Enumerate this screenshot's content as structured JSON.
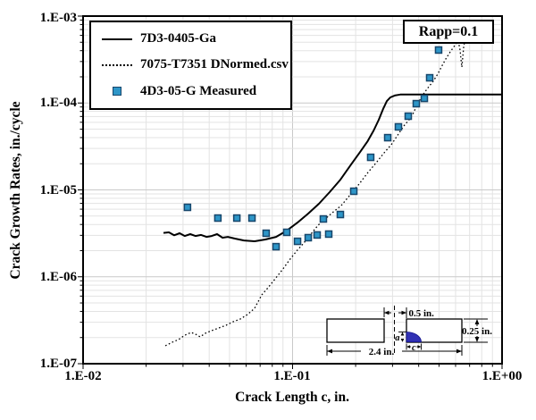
{
  "chart_data": {
    "type": "line",
    "title": "",
    "xlabel": "Crack Length c, in.",
    "ylabel": "Crack Growth Rates, in./cycle",
    "x_scale": "log",
    "y_scale": "log",
    "xlim": [
      0.01,
      1.0
    ],
    "ylim": [
      1e-07,
      0.001
    ],
    "x_tick_labels": [
      "1.E-02",
      "1.E-01",
      "1.E+00"
    ],
    "x_tick_values": [
      0.01,
      0.1,
      1.0
    ],
    "y_tick_labels": [
      "1.E-03",
      "1.E-04",
      "1.E-05",
      "1.E-06",
      "1.E-07"
    ],
    "y_tick_values": [
      0.001,
      0.0001,
      1e-05,
      1e-06,
      1e-07
    ],
    "grid": {
      "show": true,
      "minor": true,
      "minor_color": "#e3e3e3",
      "major_color": "#c9c9c9"
    },
    "annotation_box": "Rapp=0.1",
    "legend_position": "top-left",
    "series": [
      {
        "name": "7D3-0405-Ga",
        "line_style": "solid",
        "marker": "none",
        "color": "#000000",
        "line_width": 2,
        "points": [
          [
            0.0242,
            3.2e-06
          ],
          [
            0.0257,
            3.25e-06
          ],
          [
            0.0272,
            3e-06
          ],
          [
            0.0289,
            3.17e-06
          ],
          [
            0.0306,
            2.95e-06
          ],
          [
            0.0325,
            3.1e-06
          ],
          [
            0.0344,
            2.95e-06
          ],
          [
            0.0366,
            3.03e-06
          ],
          [
            0.0388,
            2.88e-06
          ],
          [
            0.0411,
            2.95e-06
          ],
          [
            0.0436,
            3.1e-06
          ],
          [
            0.0463,
            2.82e-06
          ],
          [
            0.0491,
            2.88e-06
          ],
          [
            0.0531,
            2.75e-06
          ],
          [
            0.0586,
            2.62e-06
          ],
          [
            0.0659,
            2.56e-06
          ],
          [
            0.0741,
            2.69e-06
          ],
          [
            0.0834,
            2.88e-06
          ],
          [
            0.0938,
            3.4e-06
          ],
          [
            0.1056,
            4.2e-06
          ],
          [
            0.1188,
            5.34e-06
          ],
          [
            0.1336,
            6.93e-06
          ],
          [
            0.1503,
            9.43e-06
          ],
          [
            0.1691,
            1.31e-05
          ],
          [
            0.1903,
            1.96e-05
          ],
          [
            0.2103,
            2.74e-05
          ],
          [
            0.2283,
            3.64e-05
          ],
          [
            0.2438,
            4.83e-05
          ],
          [
            0.258,
            6.41e-05
          ],
          [
            0.2703,
            8.51e-05
          ],
          [
            0.2818,
            0.000105
          ],
          [
            0.2929,
            0.000116
          ],
          [
            0.3072,
            0.000122
          ],
          [
            0.3265,
            0.000125
          ],
          [
            1.0,
            0.000125
          ]
        ]
      },
      {
        "name": "7075-T7351 DNormed.csv",
        "line_style": "dotted",
        "marker": "none",
        "color": "#000000",
        "line_width": 1.3,
        "points": [
          [
            0.0247,
            1.61e-07
          ],
          [
            0.0267,
            1.77e-07
          ],
          [
            0.0286,
            1.9e-07
          ],
          [
            0.0306,
            2.13e-07
          ],
          [
            0.0328,
            2.29e-07
          ],
          [
            0.0345,
            2.18e-07
          ],
          [
            0.0362,
            2.04e-07
          ],
          [
            0.0384,
            2.24e-07
          ],
          [
            0.0411,
            2.4e-07
          ],
          [
            0.0445,
            2.58e-07
          ],
          [
            0.0481,
            2.77e-07
          ],
          [
            0.0521,
            3.04e-07
          ],
          [
            0.0563,
            3.27e-07
          ],
          [
            0.0609,
            3.68e-07
          ],
          [
            0.0659,
            4.34e-07
          ],
          [
            0.0713,
            6.19e-07
          ],
          [
            0.0763,
            7.48e-07
          ],
          [
            0.0826,
            9.48e-07
          ],
          [
            0.0893,
            1.2e-06
          ],
          [
            0.0966,
            1.56e-06
          ],
          [
            0.1045,
            1.98e-06
          ],
          [
            0.1131,
            2.44e-06
          ],
          [
            0.1223,
            3.1e-06
          ],
          [
            0.1323,
            3.92e-06
          ],
          [
            0.1431,
            4.63e-06
          ],
          [
            0.1549,
            5.47e-06
          ],
          [
            0.1707,
            6.61e-06
          ],
          [
            0.1884,
            8.78e-06
          ],
          [
            0.2078,
            1.17e-05
          ],
          [
            0.2293,
            1.59e-05
          ],
          [
            0.2529,
            2.11e-05
          ],
          [
            0.2735,
            2.67e-05
          ],
          [
            0.296,
            3.31e-05
          ],
          [
            0.3201,
            4.39e-05
          ],
          [
            0.3396,
            5.44e-05
          ],
          [
            0.3601,
            6.41e-05
          ],
          [
            0.3782,
            7.75e-05
          ],
          [
            0.3934,
            9.59e-05
          ],
          [
            0.4091,
            0.000113
          ],
          [
            0.4256,
            0.000131
          ],
          [
            0.447,
            0.000154
          ],
          [
            0.4694,
            0.000178
          ],
          [
            0.4929,
            0.000215
          ],
          [
            0.5129,
            0.000259
          ],
          [
            0.5386,
            0.000321
          ],
          [
            0.5659,
            0.000388
          ],
          [
            0.5943,
            0.000458
          ],
          [
            0.6182,
            0.000515
          ],
          [
            0.6305,
            0.000407
          ],
          [
            0.6367,
            0.000321
          ],
          [
            0.643,
            0.000259
          ],
          [
            0.6493,
            0.000337
          ],
          [
            0.6557,
            0.000437
          ],
          [
            0.6622,
            0.000503
          ]
        ]
      },
      {
        "name": "4D3-05-G Measured",
        "line_style": "none",
        "marker": "square",
        "color": "#000000",
        "marker_fill": "#2E96C8",
        "marker_edge": "#17466B",
        "marker_size": 7,
        "points": [
          [
            0.0315,
            6.3e-06
          ],
          [
            0.044,
            4.74e-06
          ],
          [
            0.0542,
            4.74e-06
          ],
          [
            0.064,
            4.74e-06
          ],
          [
            0.0748,
            3.17e-06
          ],
          [
            0.0834,
            2.22e-06
          ],
          [
            0.0938,
            3.25e-06
          ],
          [
            0.1056,
            2.56e-06
          ],
          [
            0.1188,
            2.82e-06
          ],
          [
            0.131,
            3.03e-06
          ],
          [
            0.1403,
            4.63e-06
          ],
          [
            0.1488,
            3.1e-06
          ],
          [
            0.1691,
            5.21e-06
          ],
          [
            0.196,
            9.65e-06
          ],
          [
            0.236,
            2.37e-05
          ],
          [
            0.2846,
            3.99e-05
          ],
          [
            0.3201,
            5.31e-05
          ],
          [
            0.3566,
            7.05e-05
          ],
          [
            0.3896,
            9.82e-05
          ],
          [
            0.4256,
            0.000113
          ],
          [
            0.4514,
            0.000195
          ],
          [
            0.4978,
            0.000407
          ]
        ]
      }
    ]
  },
  "inset_diagram": {
    "dim_width": "2.4 in.",
    "dim_offset": "0.5 in.",
    "dim_thickness": "0.25 in.",
    "dim_a": "a",
    "dim_c": "c",
    "crack_color": "#3131B4"
  },
  "colors": {
    "axis": "#000000",
    "background": "#ffffff",
    "marker_fill": "#2E96C8",
    "marker_edge": "#17466B"
  }
}
